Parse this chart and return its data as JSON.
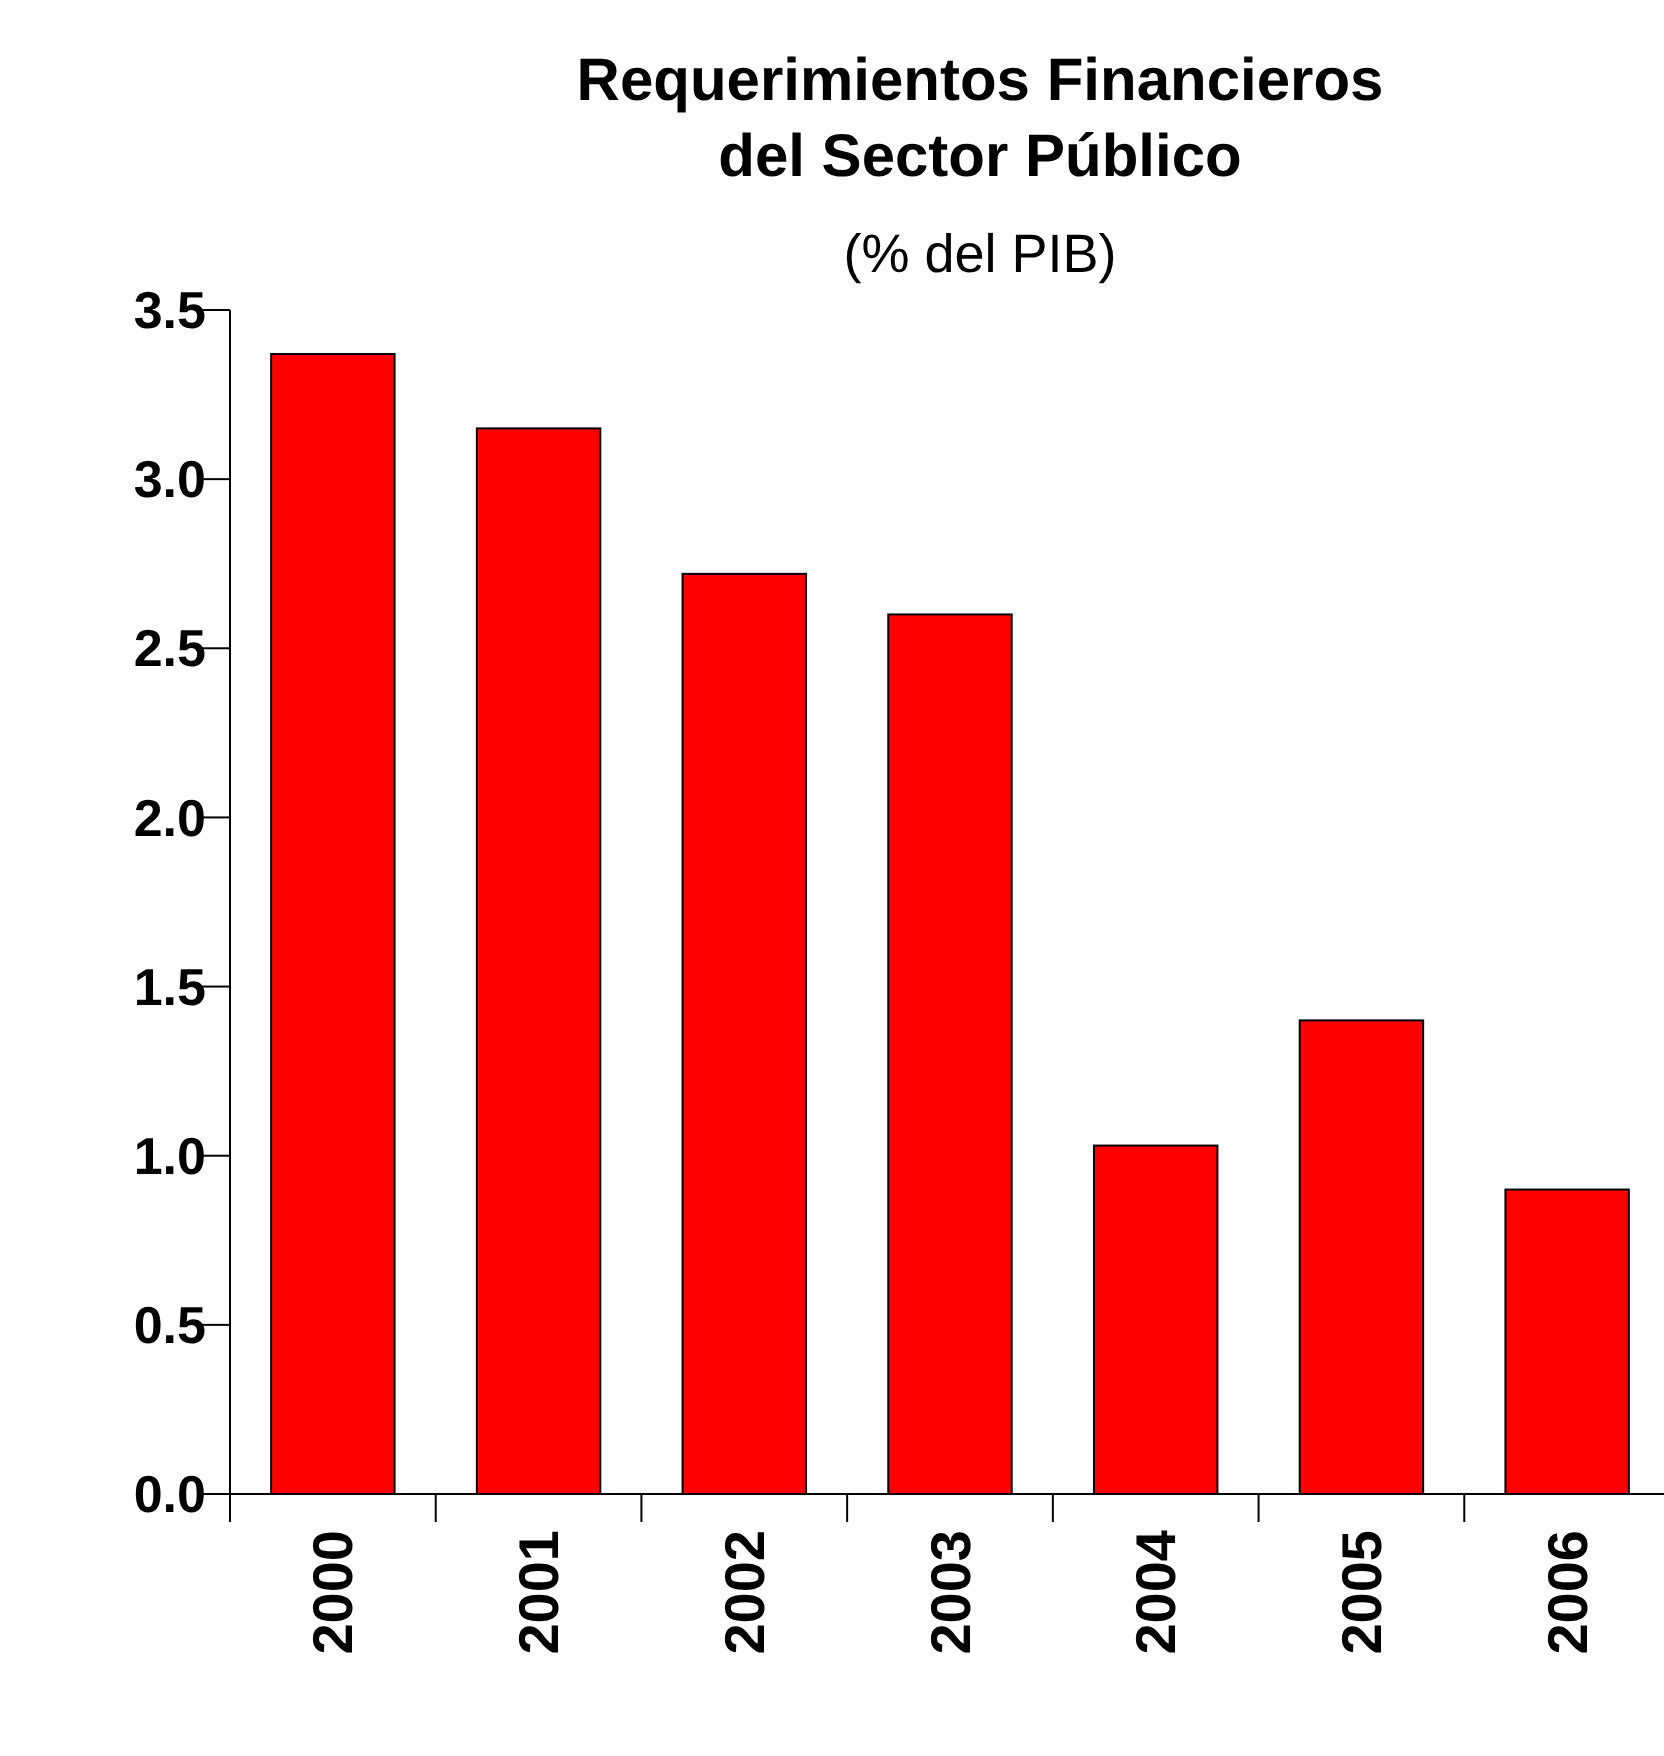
{
  "chart_data": {
    "type": "bar",
    "title": "Requerimientos Financieros del Sector Público",
    "subtitle": "(% del PIB)",
    "categories": [
      "2000",
      "2001",
      "2002",
      "2003",
      "2004",
      "2005",
      "2006"
    ],
    "values": [
      3.37,
      3.15,
      2.72,
      2.6,
      1.03,
      1.4,
      0.9
    ],
    "color": "#ff0000",
    "ylim": [
      0,
      3.5
    ],
    "yticks": [
      {
        "value": 0,
        "label": "0.0"
      },
      {
        "value": 0.5,
        "label": "0.5"
      },
      {
        "value": 1,
        "label": "1.0"
      },
      {
        "value": 1.5,
        "label": "1.5"
      },
      {
        "value": 2,
        "label": "2.0"
      },
      {
        "value": 2.5,
        "label": "2.5"
      },
      {
        "value": 3,
        "label": "3.0"
      },
      {
        "value": 3.5,
        "label": "3.5"
      }
    ],
    "grid": false
  }
}
